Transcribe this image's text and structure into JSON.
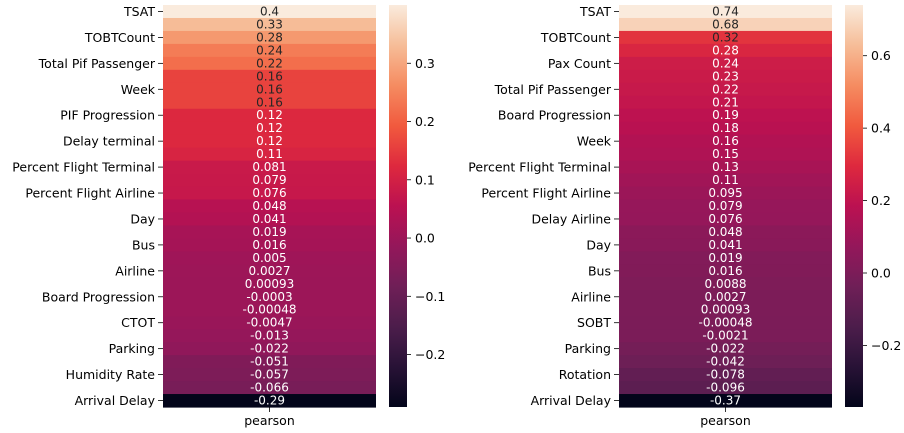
{
  "chart_data": [
    {
      "type": "heatmap",
      "xlabel": "pearson",
      "row_labels": [
        "TSAT",
        "",
        "TOBTCount",
        "",
        "Total Pif Passenger",
        "",
        "Week",
        "",
        "PIF Progression",
        "",
        "Delay terminal",
        "",
        "Percent Flight Terminal",
        "",
        "Percent Flight Airline",
        "",
        "Day",
        "",
        "Bus",
        "",
        "Airline",
        "",
        "Board Progression",
        "",
        "CTOT",
        "",
        "Parking",
        "",
        "Humidity Rate",
        "",
        "Arrival Delay"
      ],
      "values": [
        0.4,
        0.33,
        0.28,
        0.24,
        0.22,
        0.16,
        0.16,
        0.16,
        0.12,
        0.12,
        0.12,
        0.11,
        0.081,
        0.079,
        0.076,
        0.048,
        0.041,
        0.019,
        0.016,
        0.005,
        0.0027,
        0.00093,
        -0.0003,
        -0.00048,
        -0.0047,
        -0.013,
        -0.022,
        -0.051,
        -0.057,
        -0.066,
        -0.29
      ],
      "value_labels": [
        "0.4",
        "0.33",
        "0.28",
        "0.24",
        "0.22",
        "0.16",
        "0.16",
        "0.16",
        "0.12",
        "0.12",
        "0.12",
        "0.11",
        "0.081",
        "0.079",
        "0.076",
        "0.048",
        "0.041",
        "0.019",
        "0.016",
        "0.005",
        "0.0027",
        "0.00093",
        "-0.0003",
        "-0.00048",
        "-0.0047",
        "-0.013",
        "-0.022",
        "-0.051",
        "-0.057",
        "-0.066",
        "-0.29"
      ],
      "color_range": [
        -0.29,
        0.4
      ],
      "colorbar_ticks": [
        0.3,
        0.2,
        0.1,
        0.0,
        -0.1,
        -0.2
      ],
      "colorbar_tick_labels": [
        "0.3",
        "0.2",
        "0.1",
        "0.0",
        "−0.1",
        "−0.2"
      ],
      "colormap": "rocket"
    },
    {
      "type": "heatmap",
      "xlabel": "pearson",
      "row_labels": [
        "TSAT",
        "",
        "TOBTCount",
        "",
        "Pax Count",
        "",
        "Total Pif Passenger",
        "",
        "Board Progression",
        "",
        "Week",
        "",
        "Percent Flight Terminal",
        "",
        "Percent Flight Airline",
        "",
        "Delay Airline",
        "",
        "Day",
        "",
        "Bus",
        "",
        "Airline",
        "",
        "SOBT",
        "",
        "Parking",
        "",
        "Rotation",
        "",
        "Arrival Delay"
      ],
      "values": [
        0.74,
        0.68,
        0.32,
        0.28,
        0.24,
        0.23,
        0.22,
        0.21,
        0.19,
        0.18,
        0.16,
        0.15,
        0.13,
        0.11,
        0.095,
        0.079,
        0.076,
        0.048,
        0.041,
        0.019,
        0.016,
        0.0088,
        0.0027,
        0.00093,
        -0.00048,
        -0.0021,
        -0.022,
        -0.042,
        -0.078,
        -0.096,
        -0.37
      ],
      "value_labels": [
        "0.74",
        "0.68",
        "0.32",
        "0.28",
        "0.24",
        "0.23",
        "0.22",
        "0.21",
        "0.19",
        "0.18",
        "0.16",
        "0.15",
        "0.13",
        "0.11",
        "0.095",
        "0.079",
        "0.076",
        "0.048",
        "0.041",
        "0.019",
        "0.016",
        "0.0088",
        "0.0027",
        "0.00093",
        "-0.00048",
        "-0.0021",
        "-0.022",
        "-0.042",
        "-0.078",
        "-0.096",
        "-0.37"
      ],
      "color_range": [
        -0.37,
        0.74
      ],
      "colorbar_ticks": [
        0.6,
        0.4,
        0.2,
        0.0,
        -0.2
      ],
      "colorbar_tick_labels": [
        "0.6",
        "0.4",
        "0.2",
        "0.0",
        "−0.2"
      ],
      "colormap": "rocket"
    }
  ]
}
